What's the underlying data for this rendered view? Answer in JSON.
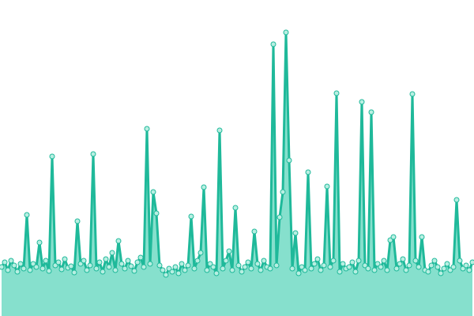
{
  "chart_data": {
    "type": "area",
    "x": [
      0,
      1,
      2,
      3,
      4,
      5,
      6,
      7,
      8,
      9,
      10,
      11,
      12,
      13,
      14,
      15,
      16,
      17,
      18,
      19,
      20,
      21,
      22,
      23,
      24,
      25,
      26,
      27,
      28,
      29,
      30,
      31,
      32,
      33,
      34,
      35,
      36,
      37,
      38,
      39,
      40,
      41,
      42,
      43,
      44,
      45,
      46,
      47,
      48,
      49,
      50,
      51,
      52,
      53,
      54,
      55,
      56,
      57,
      58,
      59,
      60,
      61,
      62,
      63,
      64,
      65,
      66,
      67,
      68,
      69,
      70,
      71,
      72,
      73,
      74,
      75,
      76,
      77,
      78,
      79,
      80,
      81,
      82,
      83,
      84,
      85,
      86,
      87,
      88,
      89,
      90,
      91,
      92,
      93,
      94,
      95,
      96,
      97,
      98,
      99,
      100,
      101,
      102,
      103,
      104,
      105,
      106,
      107,
      108,
      109,
      110,
      111,
      112,
      113,
      114,
      115,
      116,
      117,
      118,
      119,
      120,
      121,
      122,
      123,
      124,
      125,
      126,
      127,
      128,
      129,
      130,
      131,
      132,
      133,
      134,
      135,
      136,
      137,
      138,
      139,
      140,
      141,
      142,
      143,
      144,
      145,
      146,
      147,
      148,
      149
    ],
    "values": [
      62,
      68,
      58,
      70,
      64,
      56,
      66,
      60,
      128,
      58,
      66,
      62,
      93,
      60,
      70,
      57,
      202,
      64,
      68,
      59,
      72,
      61,
      63,
      55,
      120,
      66,
      70,
      58,
      64,
      205,
      60,
      68,
      56,
      72,
      62,
      80,
      58,
      95,
      66,
      60,
      70,
      63,
      57,
      68,
      74,
      62,
      237,
      66,
      157,
      130,
      64,
      58,
      52,
      60,
      56,
      62,
      54,
      66,
      58,
      64,
      126,
      60,
      70,
      80,
      163,
      58,
      66,
      62,
      54,
      235,
      60,
      70,
      82,
      58,
      137,
      64,
      56,
      62,
      68,
      60,
      107,
      66,
      58,
      70,
      62,
      60,
      344,
      64,
      125,
      157,
      359,
      197,
      60,
      105,
      54,
      62,
      58,
      182,
      60,
      66,
      72,
      58,
      64,
      164,
      62,
      70,
      282,
      56,
      66,
      60,
      62,
      68,
      56,
      70,
      271,
      64,
      60,
      258,
      58,
      66,
      62,
      70,
      58,
      96,
      100,
      60,
      66,
      72,
      58,
      64,
      281,
      70,
      62,
      100,
      58,
      56,
      64,
      70,
      62,
      54,
      60,
      66,
      58,
      62,
      147,
      70,
      60,
      64,
      58,
      68
    ],
    "xlim": [
      0,
      149
    ],
    "ylim": [
      0,
      400
    ],
    "color": "#1fb99a",
    "fill": "#86e0cd",
    "marker_fill": "#b8efe2"
  }
}
